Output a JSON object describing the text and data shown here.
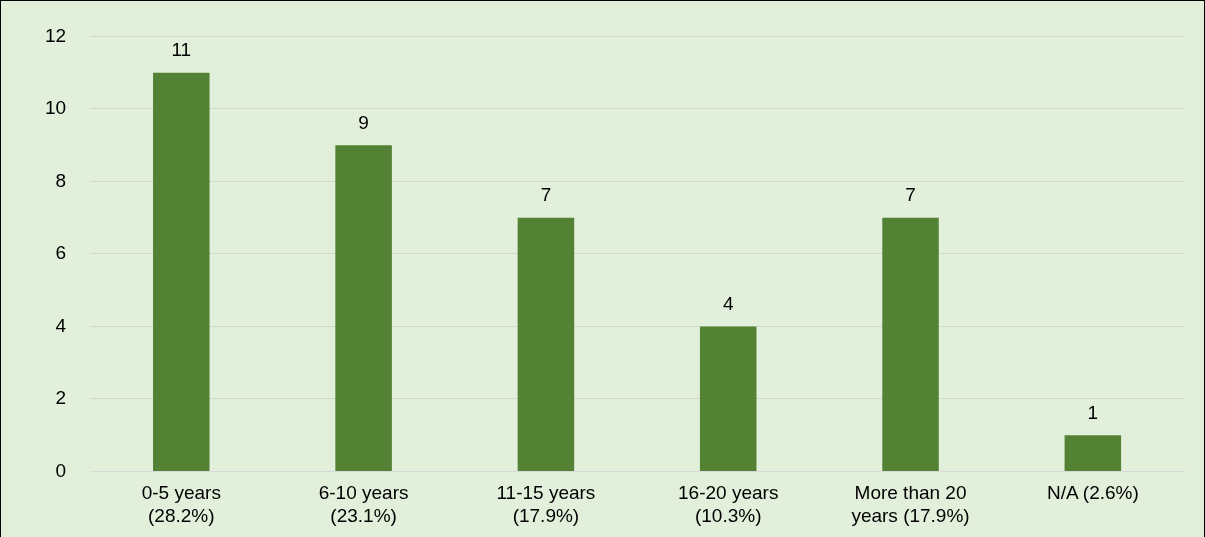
{
  "chart_data": {
    "type": "bar",
    "categories": [
      "0-5 years\n(28.2%)",
      "6-10 years\n(23.1%)",
      "11-15 years\n(17.9%)",
      "16-20 years\n(10.3%)",
      "More than 20\nyears (17.9%)",
      "N/A (2.6%)"
    ],
    "values": [
      11,
      9,
      7,
      4,
      7,
      1
    ],
    "color": "#548235",
    "ylim": [
      0,
      12
    ],
    "yticks": [
      0,
      2,
      4,
      6,
      8,
      10,
      12
    ],
    "grid": "y",
    "data_labels": true
  }
}
